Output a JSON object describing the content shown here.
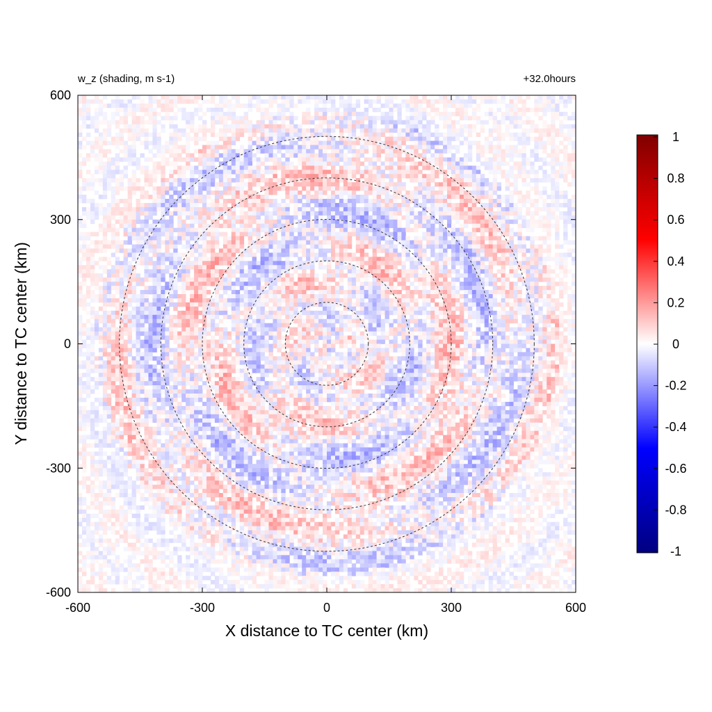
{
  "chart_data": {
    "type": "heatmap",
    "title_left": "w_z (shading, m s-1)",
    "title_right": "+32.0hours",
    "xlabel": "X distance to TC center (km)",
    "ylabel": "Y distance to TC center (km)",
    "xlim": [
      -600,
      600
    ],
    "ylim": [
      -600,
      600
    ],
    "xticks": [
      -600,
      -300,
      0,
      300,
      600
    ],
    "yticks": [
      -600,
      -300,
      0,
      300,
      600
    ],
    "grid": false,
    "range_rings_km": [
      100,
      200,
      300,
      400,
      500
    ],
    "colorbar": {
      "min": -1,
      "max": 1,
      "ticks": [
        "1",
        "0.8",
        "0.6",
        "0.4",
        "0.2",
        "0",
        "-0.2",
        "-0.4",
        "-0.6",
        "-0.8",
        "-1"
      ],
      "colors": {
        "low": "#000080",
        "negative": "#0000ff",
        "zero": "#ffffff",
        "positive": "#ff0000",
        "high": "#800000"
      }
    },
    "field_description_values": {
      "typical_magnitude": 0.15,
      "peak_positive": 0.6,
      "peak_negative": -0.45
    }
  }
}
